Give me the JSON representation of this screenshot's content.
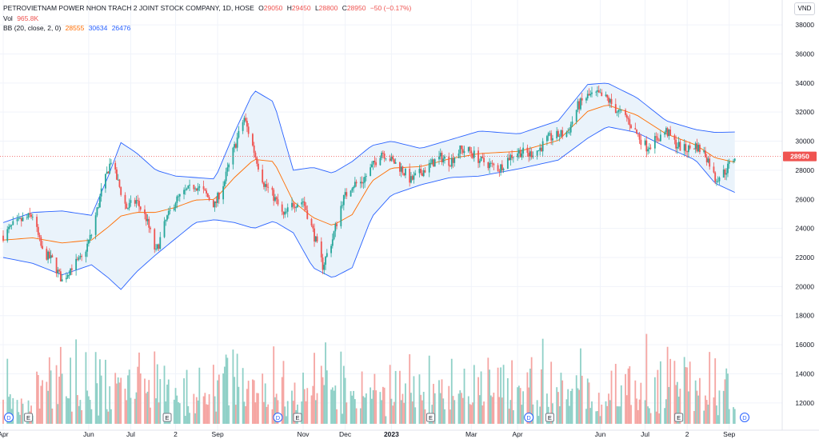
{
  "legend": {
    "title": "PETROVIETNAM POWER NHON TRACH 2 JOINT STOCK COMPANY, 1D, HOSE",
    "ohlc": {
      "o_label": "O",
      "o": "29050",
      "h_label": "H",
      "h": "29450",
      "l_label": "L",
      "l": "28800",
      "c_label": "C",
      "c": "28950",
      "change": "−50 (−0.17%)"
    },
    "vol_label": "Vol",
    "vol_value": "965.8K",
    "bb_label": "BB (20, close, 2, 0)",
    "bb_basis": "28555",
    "bb_upper": "30634",
    "bb_lower": "26476"
  },
  "currency": "VND",
  "colors": {
    "up": "#26a69a",
    "down": "#ef5350",
    "basis": "#ff6d00",
    "band": "#2962ff",
    "band_fill": "#eaf3fb",
    "grid": "#f0f3fa",
    "text": "#131722",
    "axis_text": "#131722",
    "volume_up": "#8fd0c7",
    "volume_down": "#f5a5a2",
    "price_label_bg": "#ef5350",
    "price_line": "#ef5350"
  },
  "chart_data": {
    "type": "candlestick",
    "y_axis": {
      "ticks": [
        12000,
        14000,
        16000,
        18000,
        20000,
        22000,
        24000,
        26000,
        28000,
        30000,
        32000,
        34000,
        36000,
        38000
      ],
      "range": [
        11000,
        38500
      ]
    },
    "x_axis": {
      "range": [
        "2022-04-01",
        "2023-09-08"
      ],
      "ticks": [
        {
          "label": "Apr",
          "date": "2022-04-01"
        },
        {
          "label": "Jun",
          "date": "2022-06-01"
        },
        {
          "label": "Jul",
          "date": "2022-07-01"
        },
        {
          "label": "2",
          "date": "2022-08-02"
        },
        {
          "label": "Sep",
          "date": "2022-09-01"
        },
        {
          "label": "Nov",
          "date": "2022-11-01"
        },
        {
          "label": "Dec",
          "date": "2022-12-01"
        },
        {
          "label": "2023",
          "date": "2023-01-03"
        },
        {
          "label": "Mar",
          "date": "2023-03-01"
        },
        {
          "label": "Apr",
          "date": "2023-04-03"
        },
        {
          "label": "Jun",
          "date": "2023-06-01"
        },
        {
          "label": "Jul",
          "date": "2023-07-03"
        },
        {
          "label": "2",
          "date": "2023-08-02"
        },
        {
          "label": "Sep",
          "date": "2023-09-01"
        }
      ]
    },
    "last_price": 28950,
    "last_price_label": "28950",
    "close_path": [
      [
        "2022-04-01",
        23500
      ],
      [
        "2022-04-08",
        24200
      ],
      [
        "2022-04-15",
        24600
      ],
      [
        "2022-04-22",
        24900
      ],
      [
        "2022-04-29",
        22400
      ],
      [
        "2022-05-06",
        21800
      ],
      [
        "2022-05-13",
        20400
      ],
      [
        "2022-05-20",
        21400
      ],
      [
        "2022-05-27",
        21900
      ],
      [
        "2022-06-03",
        23600
      ],
      [
        "2022-06-10",
        26500
      ],
      [
        "2022-06-17",
        28700
      ],
      [
        "2022-06-21",
        27400
      ],
      [
        "2022-06-28",
        25400
      ],
      [
        "2022-07-05",
        25900
      ],
      [
        "2022-07-12",
        24700
      ],
      [
        "2022-07-19",
        22300
      ],
      [
        "2022-07-26",
        24500
      ],
      [
        "2022-08-02",
        25900
      ],
      [
        "2022-08-09",
        26500
      ],
      [
        "2022-08-16",
        27000
      ],
      [
        "2022-08-23",
        26400
      ],
      [
        "2022-08-30",
        25600
      ],
      [
        "2022-09-06",
        27300
      ],
      [
        "2022-09-13",
        29600
      ],
      [
        "2022-09-20",
        31600
      ],
      [
        "2022-09-27",
        29300
      ],
      [
        "2022-10-04",
        27100
      ],
      [
        "2022-10-11",
        26200
      ],
      [
        "2022-10-18",
        24800
      ],
      [
        "2022-10-25",
        25700
      ],
      [
        "2022-11-01",
        25900
      ],
      [
        "2022-11-08",
        23800
      ],
      [
        "2022-11-15",
        21400
      ],
      [
        "2022-11-22",
        23300
      ],
      [
        "2022-11-29",
        25900
      ],
      [
        "2022-12-06",
        27000
      ],
      [
        "2022-12-13",
        27200
      ],
      [
        "2022-12-20",
        28200
      ],
      [
        "2022-12-27",
        29300
      ],
      [
        "2023-01-03",
        28700
      ],
      [
        "2023-01-10",
        28100
      ],
      [
        "2023-01-17",
        27300
      ],
      [
        "2023-01-31",
        28400
      ],
      [
        "2023-02-07",
        28900
      ],
      [
        "2023-02-14",
        28600
      ],
      [
        "2023-02-21",
        29400
      ],
      [
        "2023-02-28",
        29300
      ],
      [
        "2023-03-07",
        28700
      ],
      [
        "2023-03-14",
        28400
      ],
      [
        "2023-03-21",
        28100
      ],
      [
        "2023-03-28",
        28900
      ],
      [
        "2023-04-04",
        29300
      ],
      [
        "2023-04-11",
        29100
      ],
      [
        "2023-04-18",
        29400
      ],
      [
        "2023-04-25",
        30200
      ],
      [
        "2023-05-09",
        30600
      ],
      [
        "2023-05-16",
        32400
      ],
      [
        "2023-05-23",
        33100
      ],
      [
        "2023-05-30",
        33200
      ],
      [
        "2023-06-06",
        32900
      ],
      [
        "2023-06-13",
        32100
      ],
      [
        "2023-06-20",
        31600
      ],
      [
        "2023-06-27",
        30500
      ],
      [
        "2023-07-04",
        29600
      ],
      [
        "2023-07-11",
        30100
      ],
      [
        "2023-07-18",
        30700
      ],
      [
        "2023-07-25",
        29800
      ],
      [
        "2023-08-01",
        29400
      ],
      [
        "2023-08-08",
        29700
      ],
      [
        "2023-08-15",
        29100
      ],
      [
        "2023-08-18",
        28500
      ],
      [
        "2023-08-22",
        27400
      ],
      [
        "2023-08-25",
        27600
      ],
      [
        "2023-08-29",
        27900
      ],
      [
        "2023-09-05",
        28950
      ]
    ],
    "bb_upper_path": [
      [
        "2022-04-01",
        24400
      ],
      [
        "2022-04-22",
        25100
      ],
      [
        "2022-05-13",
        25200
      ],
      [
        "2022-06-03",
        24900
      ],
      [
        "2022-06-15",
        27600
      ],
      [
        "2022-06-24",
        29900
      ],
      [
        "2022-07-05",
        29200
      ],
      [
        "2022-07-19",
        28000
      ],
      [
        "2022-08-02",
        27600
      ],
      [
        "2022-08-16",
        27500
      ],
      [
        "2022-08-30",
        27400
      ],
      [
        "2022-09-13",
        30600
      ],
      [
        "2022-09-27",
        33500
      ],
      [
        "2022-10-11",
        32700
      ],
      [
        "2022-10-25",
        28000
      ],
      [
        "2022-11-08",
        28200
      ],
      [
        "2022-11-22",
        27800
      ],
      [
        "2022-12-06",
        28600
      ],
      [
        "2022-12-20",
        29700
      ],
      [
        "2023-01-03",
        30000
      ],
      [
        "2023-01-24",
        29500
      ],
      [
        "2023-02-14",
        30100
      ],
      [
        "2023-03-07",
        30700
      ],
      [
        "2023-04-04",
        30500
      ],
      [
        "2023-05-02",
        31400
      ],
      [
        "2023-05-23",
        33900
      ],
      [
        "2023-06-06",
        34000
      ],
      [
        "2023-06-27",
        33000
      ],
      [
        "2023-07-18",
        31400
      ],
      [
        "2023-08-08",
        30800
      ],
      [
        "2023-08-22",
        30600
      ],
      [
        "2023-09-05",
        30634
      ]
    ],
    "bb_lower_path": [
      [
        "2022-04-01",
        22000
      ],
      [
        "2022-04-22",
        21600
      ],
      [
        "2022-05-13",
        20800
      ],
      [
        "2022-06-03",
        21500
      ],
      [
        "2022-06-15",
        20600
      ],
      [
        "2022-06-24",
        19800
      ],
      [
        "2022-07-05",
        21000
      ],
      [
        "2022-07-19",
        22200
      ],
      [
        "2022-08-02",
        23300
      ],
      [
        "2022-08-16",
        24400
      ],
      [
        "2022-08-30",
        24600
      ],
      [
        "2022-09-13",
        24400
      ],
      [
        "2022-09-27",
        24000
      ],
      [
        "2022-10-11",
        24500
      ],
      [
        "2022-10-25",
        23700
      ],
      [
        "2022-11-08",
        21300
      ],
      [
        "2022-11-22",
        20600
      ],
      [
        "2022-12-06",
        21300
      ],
      [
        "2022-12-20",
        24800
      ],
      [
        "2023-01-03",
        26300
      ],
      [
        "2023-01-24",
        27000
      ],
      [
        "2023-02-14",
        27500
      ],
      [
        "2023-03-07",
        27600
      ],
      [
        "2023-04-04",
        28100
      ],
      [
        "2023-05-02",
        28700
      ],
      [
        "2023-05-23",
        30200
      ],
      [
        "2023-06-06",
        31000
      ],
      [
        "2023-06-27",
        30600
      ],
      [
        "2023-07-18",
        29600
      ],
      [
        "2023-08-08",
        28700
      ],
      [
        "2023-08-22",
        27100
      ],
      [
        "2023-09-05",
        26476
      ]
    ],
    "volume_range": [
      0,
      2200000
    ],
    "event_markers": [
      {
        "label": "D",
        "kind": "dividend",
        "date": "2022-04-05"
      },
      {
        "label": "E",
        "kind": "earnings",
        "date": "2022-04-19"
      },
      {
        "label": "E",
        "kind": "earnings",
        "date": "2022-07-27"
      },
      {
        "label": "D",
        "kind": "dividend",
        "date": "2022-10-14"
      },
      {
        "label": "E",
        "kind": "earnings",
        "date": "2022-10-28"
      },
      {
        "label": "E",
        "kind": "earnings",
        "date": "2023-01-31"
      },
      {
        "label": "D",
        "kind": "dividend",
        "date": "2023-04-11"
      },
      {
        "label": "E",
        "kind": "earnings",
        "date": "2023-04-26"
      },
      {
        "label": "E",
        "kind": "earnings",
        "date": "2023-07-27"
      },
      {
        "label": "D",
        "kind": "dividend",
        "date": "2023-09-12"
      }
    ]
  }
}
